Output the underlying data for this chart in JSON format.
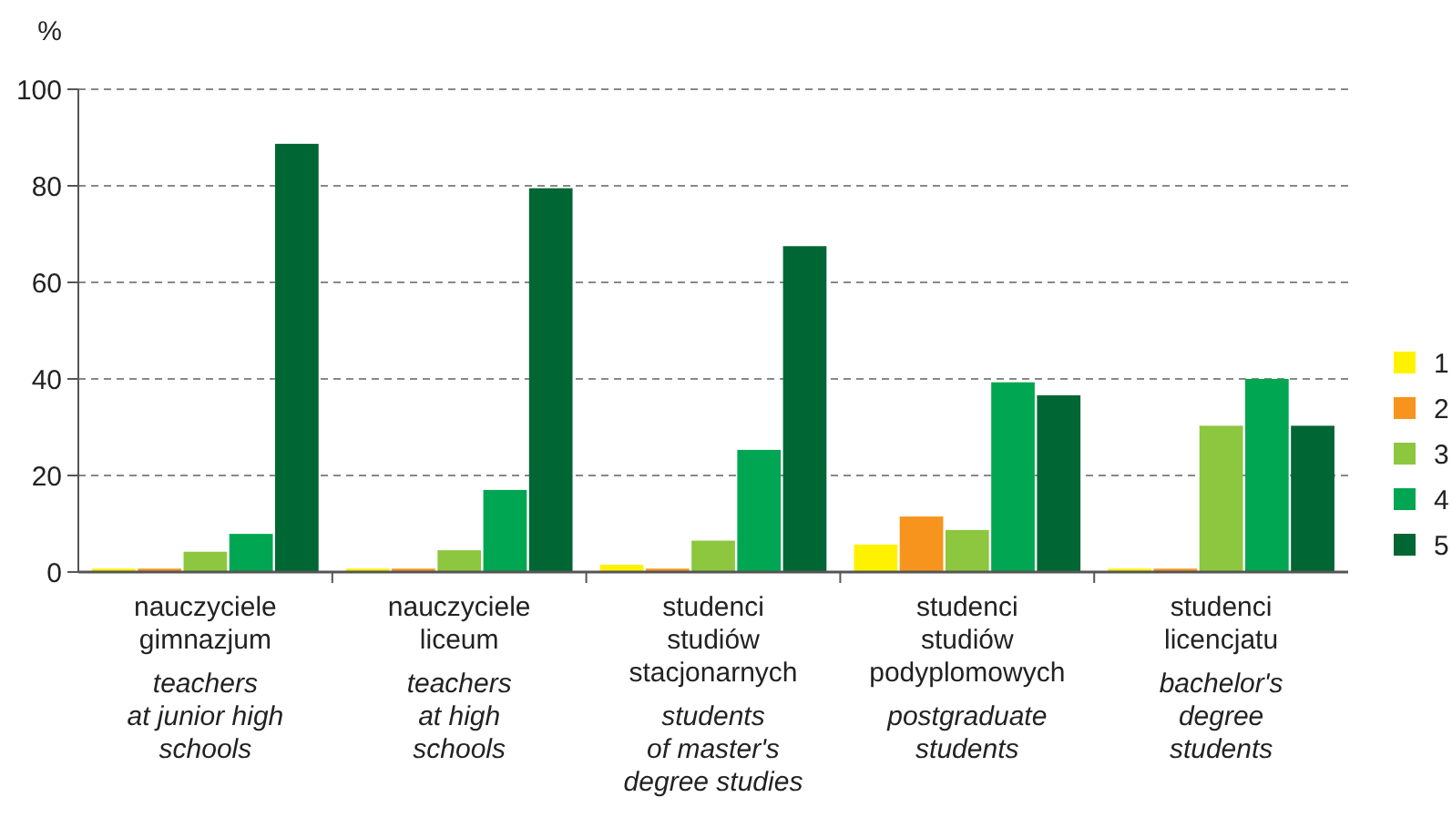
{
  "chart_data": {
    "type": "bar",
    "ylabel": "%",
    "categories": [
      "nauczyciele\ngimnazjum\n\nteachers\nat junior high\nschools",
      "nauczyciele\nliceum\n\nteachers\nat high\nschools",
      "studenci\nstudiów\nstacjonarnych\n\nstudents\nof master's\ndegree studies",
      "studenci\nstudiów\npodyplomowych\n\npostgraduate\nstudents",
      "studenci\nlicencjatu\n\nbachelor's\ndegree\nstudents"
    ],
    "series": [
      {
        "name": "1",
        "color": "#fff200",
        "values": [
          0.7,
          0.7,
          1.5,
          5.7,
          0.7
        ]
      },
      {
        "name": "2",
        "color": "#f7941d",
        "values": [
          0.7,
          0.7,
          0.7,
          11.5,
          0.7
        ]
      },
      {
        "name": "3",
        "color": "#8dc63f",
        "values": [
          4.2,
          4.5,
          6.5,
          8.7,
          30.3
        ]
      },
      {
        "name": "4",
        "color": "#00a651",
        "values": [
          7.9,
          17,
          25.3,
          39.3,
          40
        ]
      },
      {
        "name": "5",
        "color": "#006633",
        "values": [
          88.7,
          79.5,
          67.5,
          36.6,
          30.3
        ]
      }
    ],
    "ylim": [
      0,
      100
    ],
    "yticks": [
      0,
      20,
      40,
      60,
      80,
      100
    ],
    "grid": "y",
    "legend": "right"
  }
}
